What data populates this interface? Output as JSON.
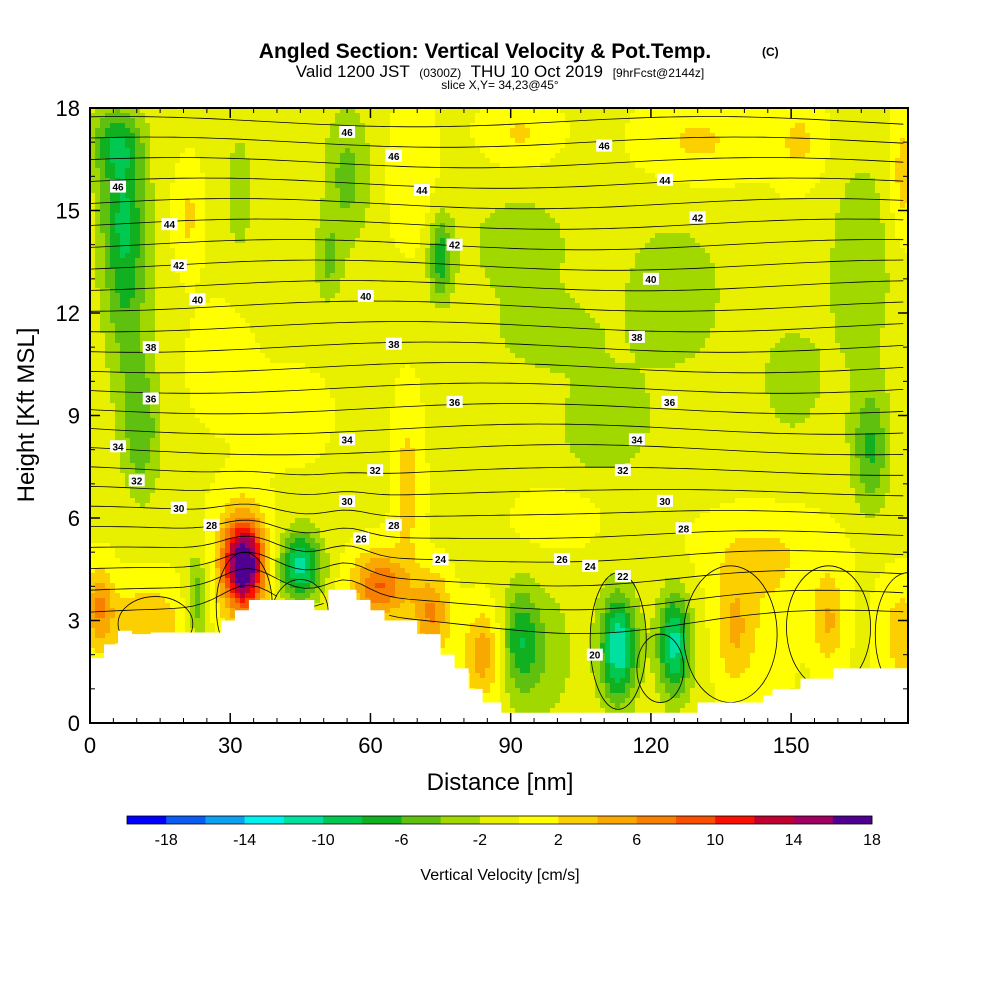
{
  "chart_data": {
    "type": "heatmap",
    "title": "Angled Section: Vertical Velocity & Pot.Temp.",
    "title_mark": "(C)",
    "subtitle": {
      "prefix": "Valid 1200 JST",
      "utc": "(0300Z)",
      "date": "THU 10 Oct 2019",
      "fcst": "[9hrFcst@2144z]"
    },
    "slice_label": "slice X,Y= 34,23@45°",
    "xlabel": "Distance [nm]",
    "ylabel": "Height [Kft MSL]",
    "xlim": [
      0,
      175
    ],
    "ylim": [
      0,
      18
    ],
    "x_ticks": [
      "0",
      "30",
      "60",
      "90",
      "120",
      "150"
    ],
    "x_tick_values": [
      0,
      30,
      60,
      90,
      120,
      150
    ],
    "y_ticks": [
      "0",
      "3",
      "6",
      "9",
      "12",
      "15",
      "18"
    ],
    "y_tick_values": [
      0,
      3,
      6,
      9,
      12,
      15,
      18
    ],
    "colorbar": {
      "label": "Vertical Velocity [cm/s]",
      "tick_labels": [
        "-18",
        "-14",
        "-10",
        "-6",
        "-2",
        "2",
        "6",
        "10",
        "14",
        "18"
      ],
      "tick_values": [
        -18,
        -14,
        -10,
        -6,
        -2,
        2,
        6,
        10,
        14,
        18
      ],
      "colors": [
        "#0000ff",
        "#0a5cf2",
        "#0ea0f0",
        "#00f0f0",
        "#00e0a0",
        "#00c850",
        "#10b020",
        "#60c010",
        "#a0d800",
        "#e8f000",
        "#ffff00",
        "#fcd000",
        "#f8a800",
        "#f88000",
        "#f85000",
        "#f81000",
        "#c00030",
        "#a00060",
        "#500090"
      ]
    },
    "velocity_features": [
      {
        "x": 33,
        "z": 4.6,
        "w": 17,
        "rx": 4,
        "rz": 1.2
      },
      {
        "x": 32,
        "z": 4.8,
        "w": 5,
        "rx": 6,
        "rz": 1.8
      },
      {
        "x": 45,
        "z": 4.6,
        "w": -11,
        "rx": 4.5,
        "rz": 1.0
      },
      {
        "x": 62,
        "z": 4.0,
        "w": 9,
        "rx": 6,
        "rz": 1.0
      },
      {
        "x": 73,
        "z": 3.2,
        "w": 7,
        "rx": 4,
        "rz": 1.2
      },
      {
        "x": 84,
        "z": 2.0,
        "w": 6,
        "rx": 4,
        "rz": 1.3
      },
      {
        "x": 12,
        "z": 3.0,
        "w": 4,
        "rx": 10,
        "rz": 1.2
      },
      {
        "x": 2,
        "z": 3.4,
        "w": 6,
        "rx": 3,
        "rz": 1.2
      },
      {
        "x": 23,
        "z": 3.6,
        "w": -6,
        "rx": 2.5,
        "rz": 1.3
      },
      {
        "x": 92,
        "z": 2.4,
        "w": -7,
        "rx": 4,
        "rz": 1.6
      },
      {
        "x": 98,
        "z": 2.0,
        "w": -3,
        "rx": 6,
        "rz": 2.0
      },
      {
        "x": 113,
        "z": 2.2,
        "w": -12,
        "rx": 4,
        "rz": 1.6
      },
      {
        "x": 125,
        "z": 2.3,
        "w": -11,
        "rx": 3.5,
        "rz": 1.5
      },
      {
        "x": 138,
        "z": 2.8,
        "w": 5,
        "rx": 4,
        "rz": 1.8
      },
      {
        "x": 146,
        "z": 2.8,
        "w": 2,
        "rx": 5,
        "rz": 2.0
      },
      {
        "x": 158,
        "z": 3.0,
        "w": 5,
        "rx": 3.5,
        "rz": 1.3
      },
      {
        "x": 174,
        "z": 2.6,
        "w": 4,
        "rx": 5,
        "rz": 1.5
      },
      {
        "x": 7,
        "z": 15.0,
        "w": -7,
        "rx": 5,
        "rz": 2.5
      },
      {
        "x": 8,
        "z": 12.0,
        "w": -4,
        "rx": 5,
        "rz": 3.0
      },
      {
        "x": 11,
        "z": 8.5,
        "w": -5,
        "rx": 4,
        "rz": 2.0
      },
      {
        "x": 5,
        "z": 17.0,
        "w": -5,
        "rx": 6,
        "rz": 1.0
      },
      {
        "x": 21,
        "z": 14.8,
        "w": 3,
        "rx": 3,
        "rz": 1.5
      },
      {
        "x": 28,
        "z": 10.5,
        "w": 2.5,
        "rx": 6,
        "rz": 1.5
      },
      {
        "x": 32,
        "z": 15.5,
        "w": -3,
        "rx": 3,
        "rz": 2.0
      },
      {
        "x": 55,
        "z": 16.0,
        "w": -4.5,
        "rx": 5,
        "rz": 2.0
      },
      {
        "x": 51,
        "z": 13.5,
        "w": -4,
        "rx": 3,
        "rz": 1.2
      },
      {
        "x": 69,
        "z": 16.0,
        "w": 2.5,
        "rx": 5,
        "rz": 2.0
      },
      {
        "x": 68,
        "z": 7.0,
        "w": 3.5,
        "rx": 3,
        "rz": 2.5
      },
      {
        "x": 75,
        "z": 13.6,
        "w": -7,
        "rx": 2.5,
        "rz": 1.2
      },
      {
        "x": 92,
        "z": 17.2,
        "w": 3,
        "rx": 8,
        "rz": 1.0
      },
      {
        "x": 92,
        "z": 14.0,
        "w": -2.5,
        "rx": 14,
        "rz": 2.0
      },
      {
        "x": 98,
        "z": 11.3,
        "w": -2.5,
        "rx": 12,
        "rz": 1.2
      },
      {
        "x": 110,
        "z": 8.7,
        "w": -3.5,
        "rx": 10,
        "rz": 1.5
      },
      {
        "x": 125,
        "z": 12.5,
        "w": -3,
        "rx": 12,
        "rz": 2.5
      },
      {
        "x": 130,
        "z": 17.0,
        "w": 3,
        "rx": 12,
        "rz": 1.2
      },
      {
        "x": 167,
        "z": 8.0,
        "w": -6,
        "rx": 4,
        "rz": 1.8
      },
      {
        "x": 165,
        "z": 13.5,
        "w": -3,
        "rx": 8,
        "rz": 3.5
      },
      {
        "x": 152,
        "z": 17.0,
        "w": 3,
        "rx": 6,
        "rz": 1.3
      },
      {
        "x": 174,
        "z": 16.0,
        "w": 4,
        "rx": 3,
        "rz": 2.0
      },
      {
        "x": 100,
        "z": 6.0,
        "w": 2.5,
        "rx": 8,
        "rz": 0.8
      },
      {
        "x": 145,
        "z": 5.0,
        "w": 2.5,
        "rx": 15,
        "rz": 1.2
      },
      {
        "x": 150,
        "z": 10.0,
        "w": -2.5,
        "rx": 8,
        "rz": 2.0
      },
      {
        "x": 42,
        "z": 9.0,
        "w": 2.5,
        "rx": 8,
        "rz": 1.2
      }
    ],
    "theta_labels": [
      {
        "text": "46",
        "x": 55,
        "z": 17.3
      },
      {
        "text": "46",
        "x": 65,
        "z": 16.6
      },
      {
        "text": "46",
        "x": 110,
        "z": 16.9
      },
      {
        "text": "46",
        "x": 6,
        "z": 15.7
      },
      {
        "text": "44",
        "x": 71,
        "z": 15.6
      },
      {
        "text": "44",
        "x": 123,
        "z": 15.9
      },
      {
        "text": "44",
        "x": 17,
        "z": 14.6
      },
      {
        "text": "42",
        "x": 78,
        "z": 14.0
      },
      {
        "text": "42",
        "x": 130,
        "z": 14.8
      },
      {
        "text": "42",
        "x": 19,
        "z": 13.4
      },
      {
        "text": "40",
        "x": 23,
        "z": 12.4
      },
      {
        "text": "40",
        "x": 59,
        "z": 12.5
      },
      {
        "text": "40",
        "x": 120,
        "z": 13.0
      },
      {
        "text": "38",
        "x": 13,
        "z": 11.0
      },
      {
        "text": "38",
        "x": 65,
        "z": 11.1
      },
      {
        "text": "38",
        "x": 117,
        "z": 11.3
      },
      {
        "text": "36",
        "x": 13,
        "z": 9.5
      },
      {
        "text": "36",
        "x": 78,
        "z": 9.4
      },
      {
        "text": "36",
        "x": 124,
        "z": 9.4
      },
      {
        "text": "34",
        "x": 6,
        "z": 8.1
      },
      {
        "text": "34",
        "x": 55,
        "z": 8.3
      },
      {
        "text": "34",
        "x": 117,
        "z": 8.3
      },
      {
        "text": "32",
        "x": 10,
        "z": 7.1
      },
      {
        "text": "32",
        "x": 61,
        "z": 7.4
      },
      {
        "text": "32",
        "x": 114,
        "z": 7.4
      },
      {
        "text": "30",
        "x": 19,
        "z": 6.3
      },
      {
        "text": "30",
        "x": 55,
        "z": 6.5
      },
      {
        "text": "30",
        "x": 123,
        "z": 6.5
      },
      {
        "text": "28",
        "x": 26,
        "z": 5.8
      },
      {
        "text": "28",
        "x": 65,
        "z": 5.8
      },
      {
        "text": "28",
        "x": 127,
        "z": 5.7
      },
      {
        "text": "26",
        "x": 58,
        "z": 5.4
      },
      {
        "text": "26",
        "x": 101,
        "z": 4.8
      },
      {
        "text": "24",
        "x": 75,
        "z": 4.8
      },
      {
        "text": "24",
        "x": 107,
        "z": 4.6
      },
      {
        "text": "22",
        "x": 114,
        "z": 4.3
      },
      {
        "text": "20",
        "x": 108,
        "z": 2.0
      }
    ]
  }
}
